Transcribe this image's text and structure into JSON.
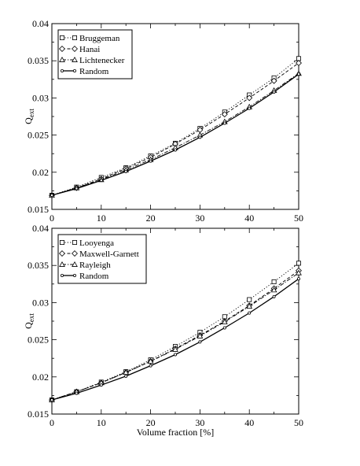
{
  "chart_data": [
    {
      "type": "line",
      "title": "",
      "xlabel": "",
      "ylabel": "Q_ext",
      "ylabel_main": "Q",
      "ylabel_sub": "ext",
      "xlim": [
        0,
        50
      ],
      "ylim": [
        0.015,
        0.04
      ],
      "xticks": [
        0,
        10,
        20,
        30,
        40,
        50
      ],
      "xtick_labels": [
        "0",
        "10",
        "20",
        "30",
        "40",
        "50"
      ],
      "yticks": [
        0.015,
        0.02,
        0.025,
        0.03,
        0.035,
        0.04
      ],
      "ytick_labels": [
        "0.015",
        "0.02",
        "0.025",
        "0.03",
        "0.035",
        "0.04"
      ],
      "grid": false,
      "legend_position": "top-left",
      "x": [
        0,
        5,
        10,
        15,
        20,
        25,
        30,
        35,
        40,
        45,
        50
      ],
      "series": [
        {
          "name": "Bruggeman",
          "marker": "square",
          "dash": "dotted",
          "values": [
            0.0169,
            0.018,
            0.0193,
            0.0206,
            0.0222,
            0.0239,
            0.0259,
            0.0281,
            0.0304,
            0.0327,
            0.0353
          ]
        },
        {
          "name": "Hanai",
          "marker": "diamond",
          "dash": "dashed",
          "values": [
            0.0169,
            0.0179,
            0.0191,
            0.0205,
            0.022,
            0.0238,
            0.0257,
            0.0278,
            0.03,
            0.0323,
            0.0347
          ]
        },
        {
          "name": "Lichtenecker",
          "marker": "triangle",
          "dash": "dashdot",
          "values": [
            0.0169,
            0.0179,
            0.019,
            0.0203,
            0.0217,
            0.0233,
            0.025,
            0.0268,
            0.0288,
            0.031,
            0.0333
          ]
        },
        {
          "name": "Random",
          "marker": "circle",
          "dash": "solid",
          "values": [
            0.0169,
            0.0178,
            0.0189,
            0.0201,
            0.0215,
            0.023,
            0.0247,
            0.0266,
            0.0286,
            0.0308,
            0.0332
          ]
        }
      ]
    },
    {
      "type": "line",
      "title": "",
      "xlabel": "Volume fraction [%]",
      "ylabel": "Q_ext",
      "ylabel_main": "Q",
      "ylabel_sub": "ext",
      "xlim": [
        0,
        50
      ],
      "ylim": [
        0.015,
        0.04
      ],
      "xticks": [
        0,
        10,
        20,
        30,
        40,
        50
      ],
      "xtick_labels": [
        "0",
        "10",
        "20",
        "30",
        "40",
        "50"
      ],
      "yticks": [
        0.015,
        0.02,
        0.025,
        0.03,
        0.035,
        0.04
      ],
      "ytick_labels": [
        "0.015",
        "0.02",
        "0.025",
        "0.03",
        "0.035",
        "0.04"
      ],
      "grid": false,
      "legend_position": "top-left",
      "x": [
        0,
        5,
        10,
        15,
        20,
        25,
        30,
        35,
        40,
        45,
        50
      ],
      "series": [
        {
          "name": "Looyenga",
          "marker": "square",
          "dash": "dotted",
          "values": [
            0.0169,
            0.018,
            0.0193,
            0.0207,
            0.0223,
            0.0241,
            0.026,
            0.0281,
            0.0304,
            0.0328,
            0.0353
          ]
        },
        {
          "name": "Maxwell-Garnett",
          "marker": "diamond",
          "dash": "dashed",
          "values": [
            0.0169,
            0.018,
            0.0192,
            0.0206,
            0.0221,
            0.0238,
            0.0256,
            0.0275,
            0.0296,
            0.0319,
            0.0343
          ]
        },
        {
          "name": "Rayleigh",
          "marker": "triangle",
          "dash": "dashdot",
          "values": [
            0.0169,
            0.018,
            0.0192,
            0.0206,
            0.0221,
            0.0237,
            0.0255,
            0.0274,
            0.0295,
            0.0317,
            0.034
          ]
        },
        {
          "name": "Random",
          "marker": "circle",
          "dash": "solid",
          "values": [
            0.0169,
            0.0178,
            0.0189,
            0.0201,
            0.0215,
            0.023,
            0.0247,
            0.0266,
            0.0286,
            0.0308,
            0.0332
          ]
        }
      ]
    }
  ]
}
